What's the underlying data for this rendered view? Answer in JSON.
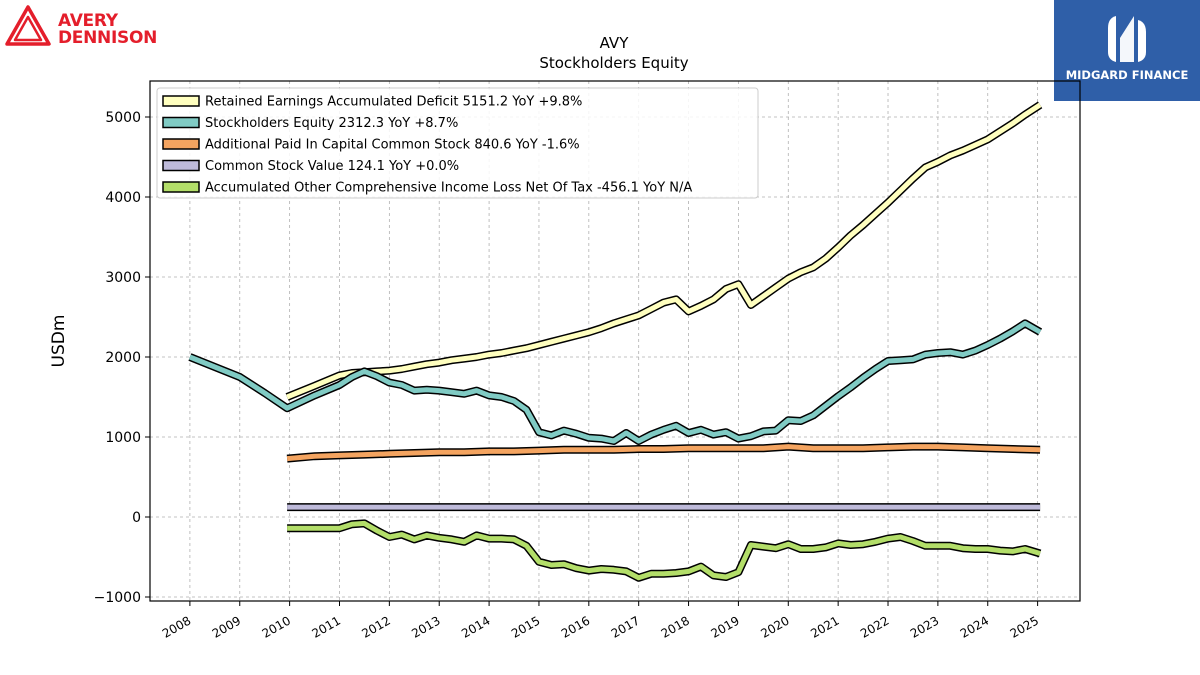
{
  "branding": {
    "company_line1": "AVERY",
    "company_line2": "DENNISON",
    "partner": "MIDGARD FINANCE",
    "company_color": "#e41e2b",
    "partner_bg": "#2f5fa8"
  },
  "chart_data": {
    "type": "line",
    "title": "AVY",
    "subtitle": "Stockholders  Equity",
    "ylabel": "USDm",
    "xlabel": "",
    "ylim": [
      -1050,
      5450
    ],
    "xlim": [
      2007.2,
      2025.85
    ],
    "yticks": [
      -1000,
      0,
      1000,
      2000,
      3000,
      4000,
      5000
    ],
    "xticks": [
      2008,
      2009,
      2010,
      2011,
      2012,
      2013,
      2014,
      2015,
      2016,
      2017,
      2018,
      2019,
      2020,
      2021,
      2022,
      2023,
      2024,
      2025
    ],
    "ytick_labels": [
      "−1000",
      "0",
      "1000",
      "2000",
      "3000",
      "4000",
      "5000"
    ],
    "xtick_labels": [
      "2008",
      "2009",
      "2010",
      "2011",
      "2012",
      "2013",
      "2014",
      "2015",
      "2016",
      "2017",
      "2018",
      "2019",
      "2020",
      "2021",
      "2022",
      "2023",
      "2024",
      "2025"
    ],
    "grid": true,
    "legend_position": "top-left",
    "series": [
      {
        "name": "Retained Earnings Accumulated Deficit  5151.2 YoY +9.8%",
        "color": "#ffffbf",
        "x": [
          2009.95,
          2010.5,
          2011.0,
          2011.25,
          2011.5,
          2011.75,
          2012.0,
          2012.25,
          2012.5,
          2012.75,
          2013.0,
          2013.25,
          2013.5,
          2013.75,
          2014.0,
          2014.25,
          2014.5,
          2014.75,
          2015.0,
          2015.25,
          2015.5,
          2015.75,
          2016.0,
          2016.25,
          2016.5,
          2016.75,
          2017.0,
          2017.25,
          2017.5,
          2017.75,
          2018.0,
          2018.25,
          2018.5,
          2018.75,
          2019.0,
          2019.25,
          2019.5,
          2019.75,
          2020.0,
          2020.25,
          2020.5,
          2020.75,
          2021.0,
          2021.25,
          2021.5,
          2021.75,
          2022.0,
          2022.25,
          2022.5,
          2022.75,
          2023.0,
          2023.25,
          2023.5,
          2023.75,
          2024.0,
          2024.25,
          2024.5,
          2024.75,
          2025.05
        ],
        "values": [
          1500,
          1640,
          1770,
          1800,
          1810,
          1820,
          1830,
          1850,
          1880,
          1910,
          1930,
          1960,
          1980,
          2000,
          2030,
          2050,
          2080,
          2110,
          2150,
          2190,
          2230,
          2270,
          2310,
          2360,
          2420,
          2470,
          2520,
          2600,
          2680,
          2720,
          2570,
          2640,
          2720,
          2850,
          2910,
          2650,
          2760,
          2870,
          2980,
          3060,
          3120,
          3230,
          3370,
          3520,
          3650,
          3790,
          3930,
          4080,
          4230,
          4370,
          4440,
          4520,
          4580,
          4650,
          4720,
          4820,
          4920,
          5030,
          5151.2
        ]
      },
      {
        "name": "Stockholders Equity  2312.3 YoY +8.7%",
        "color": "#80cbc4",
        "x": [
          2008.0,
          2009.0,
          2009.5,
          2009.95,
          2010.5,
          2011.0,
          2011.25,
          2011.5,
          2011.75,
          2012.0,
          2012.25,
          2012.5,
          2012.75,
          2013.0,
          2013.25,
          2013.5,
          2013.75,
          2014.0,
          2014.25,
          2014.5,
          2014.75,
          2015.0,
          2015.25,
          2015.5,
          2015.75,
          2016.0,
          2016.25,
          2016.5,
          2016.75,
          2017.0,
          2017.25,
          2017.5,
          2017.75,
          2018.0,
          2018.25,
          2018.5,
          2018.75,
          2019.0,
          2019.25,
          2019.5,
          2019.75,
          2020.0,
          2020.25,
          2020.5,
          2020.75,
          2021.0,
          2021.25,
          2021.5,
          2021.75,
          2022.0,
          2022.25,
          2022.5,
          2022.75,
          2023.0,
          2023.25,
          2023.5,
          2023.75,
          2024.0,
          2024.25,
          2024.5,
          2024.75,
          2025.05
        ],
        "values": [
          2000,
          1750,
          1550,
          1360,
          1520,
          1650,
          1750,
          1820,
          1760,
          1680,
          1650,
          1580,
          1590,
          1580,
          1560,
          1540,
          1580,
          1520,
          1500,
          1450,
          1340,
          1060,
          1020,
          1080,
          1040,
          990,
          980,
          950,
          1050,
          950,
          1030,
          1090,
          1140,
          1050,
          1090,
          1030,
          1060,
          980,
          1010,
          1070,
          1080,
          1210,
          1200,
          1270,
          1390,
          1510,
          1620,
          1740,
          1850,
          1950,
          1960,
          1970,
          2030,
          2050,
          2060,
          2030,
          2080,
          2150,
          2230,
          2320,
          2420,
          2312.3
        ]
      },
      {
        "name": "Additional Paid In Capital Common Stock  840.6 YoY -1.6%",
        "color": "#f4a460",
        "x": [
          2009.95,
          2010.5,
          2011.0,
          2011.5,
          2012.0,
          2012.5,
          2013.0,
          2013.5,
          2014.0,
          2014.5,
          2015.0,
          2015.5,
          2016.0,
          2016.5,
          2017.0,
          2017.5,
          2018.0,
          2018.5,
          2019.0,
          2019.5,
          2020.0,
          2020.5,
          2021.0,
          2021.5,
          2022.0,
          2022.5,
          2023.0,
          2023.5,
          2024.0,
          2024.5,
          2025.05
        ],
        "values": [
          730,
          760,
          770,
          780,
          790,
          800,
          810,
          810,
          820,
          820,
          830,
          840,
          840,
          840,
          850,
          850,
          860,
          860,
          860,
          860,
          880,
          860,
          860,
          860,
          870,
          880,
          880,
          870,
          860,
          850,
          840.6
        ]
      },
      {
        "name": "Common Stock Value  124.1 YoY +0.0%",
        "color": "#bebada",
        "x": [
          2009.95,
          2025.05
        ],
        "values": [
          124.1,
          124.1
        ]
      },
      {
        "name": "Accumulated Other Comprehensive Income Loss Net Of Tax  -456.1 YoY N/A",
        "color": "#b3de69",
        "x": [
          2009.95,
          2010.5,
          2011.0,
          2011.25,
          2011.5,
          2011.75,
          2012.0,
          2012.25,
          2012.5,
          2012.75,
          2013.0,
          2013.25,
          2013.5,
          2013.75,
          2014.0,
          2014.25,
          2014.5,
          2014.75,
          2015.0,
          2015.25,
          2015.5,
          2015.75,
          2016.0,
          2016.25,
          2016.5,
          2016.75,
          2017.0,
          2017.25,
          2017.5,
          2017.75,
          2018.0,
          2018.25,
          2018.5,
          2018.75,
          2019.0,
          2019.25,
          2019.5,
          2019.75,
          2020.0,
          2020.25,
          2020.5,
          2020.75,
          2021.0,
          2021.25,
          2021.5,
          2021.75,
          2022.0,
          2022.25,
          2022.5,
          2022.75,
          2023.0,
          2023.25,
          2023.5,
          2023.75,
          2024.0,
          2024.25,
          2024.5,
          2024.75,
          2025.05
        ],
        "values": [
          -140,
          -140,
          -140,
          -90,
          -80,
          -170,
          -250,
          -220,
          -280,
          -230,
          -260,
          -280,
          -310,
          -230,
          -270,
          -270,
          -280,
          -360,
          -560,
          -600,
          -590,
          -640,
          -670,
          -650,
          -660,
          -680,
          -760,
          -710,
          -710,
          -700,
          -680,
          -620,
          -730,
          -750,
          -690,
          -350,
          -370,
          -390,
          -340,
          -400,
          -400,
          -380,
          -330,
          -350,
          -340,
          -310,
          -270,
          -250,
          -300,
          -360,
          -360,
          -360,
          -390,
          -400,
          -400,
          -420,
          -430,
          -400,
          -456.1
        ]
      }
    ]
  }
}
